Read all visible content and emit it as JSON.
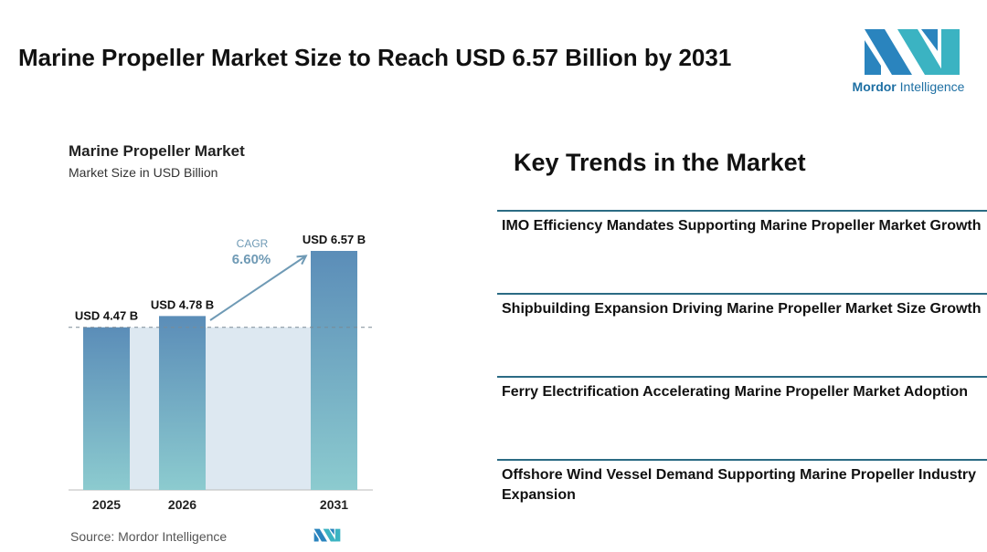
{
  "header": {
    "title": "Marine Propeller Market Size to Reach USD 6.57 Billion by 2031"
  },
  "logo": {
    "text_bold": "Mordor",
    "text_light": " Intelligence",
    "icon": "mordor-intelligence-logo-icon"
  },
  "chart_data": {
    "type": "bar",
    "title": "Marine Propeller Market",
    "subtitle": "Market Size in USD Billion",
    "categories": [
      "2025",
      "2026",
      "2031"
    ],
    "values": [
      4.47,
      4.78,
      6.57
    ],
    "data_labels": [
      "USD 4.47 B",
      "USD 4.78 B",
      "USD 6.57 B"
    ],
    "ylim": [
      0,
      6.57
    ],
    "cagr_label": "CAGR",
    "cagr_value": "6.60%",
    "reference_line": "dashed line at first bar value",
    "grid": false,
    "colors": {
      "bar_top": "#5b8db8",
      "bar_bottom": "#8ccbcf",
      "shade": "#dde8f1",
      "arrow": "#6f9ab5"
    }
  },
  "source": {
    "text": "Source:  Mordor Intelligence",
    "icon": "mordor-intelligence-logo-icon"
  },
  "trends": {
    "heading": "Key Trends in the Market",
    "items": [
      "IMO Efficiency Mandates Supporting Marine Propeller Market Growth",
      "Shipbuilding Expansion Driving Marine Propeller Market Size Growth",
      "Ferry Electrification Accelerating Marine Propeller Market Adoption",
      "Offshore Wind Vessel Demand Supporting Marine Propeller Industry Expansion"
    ]
  }
}
